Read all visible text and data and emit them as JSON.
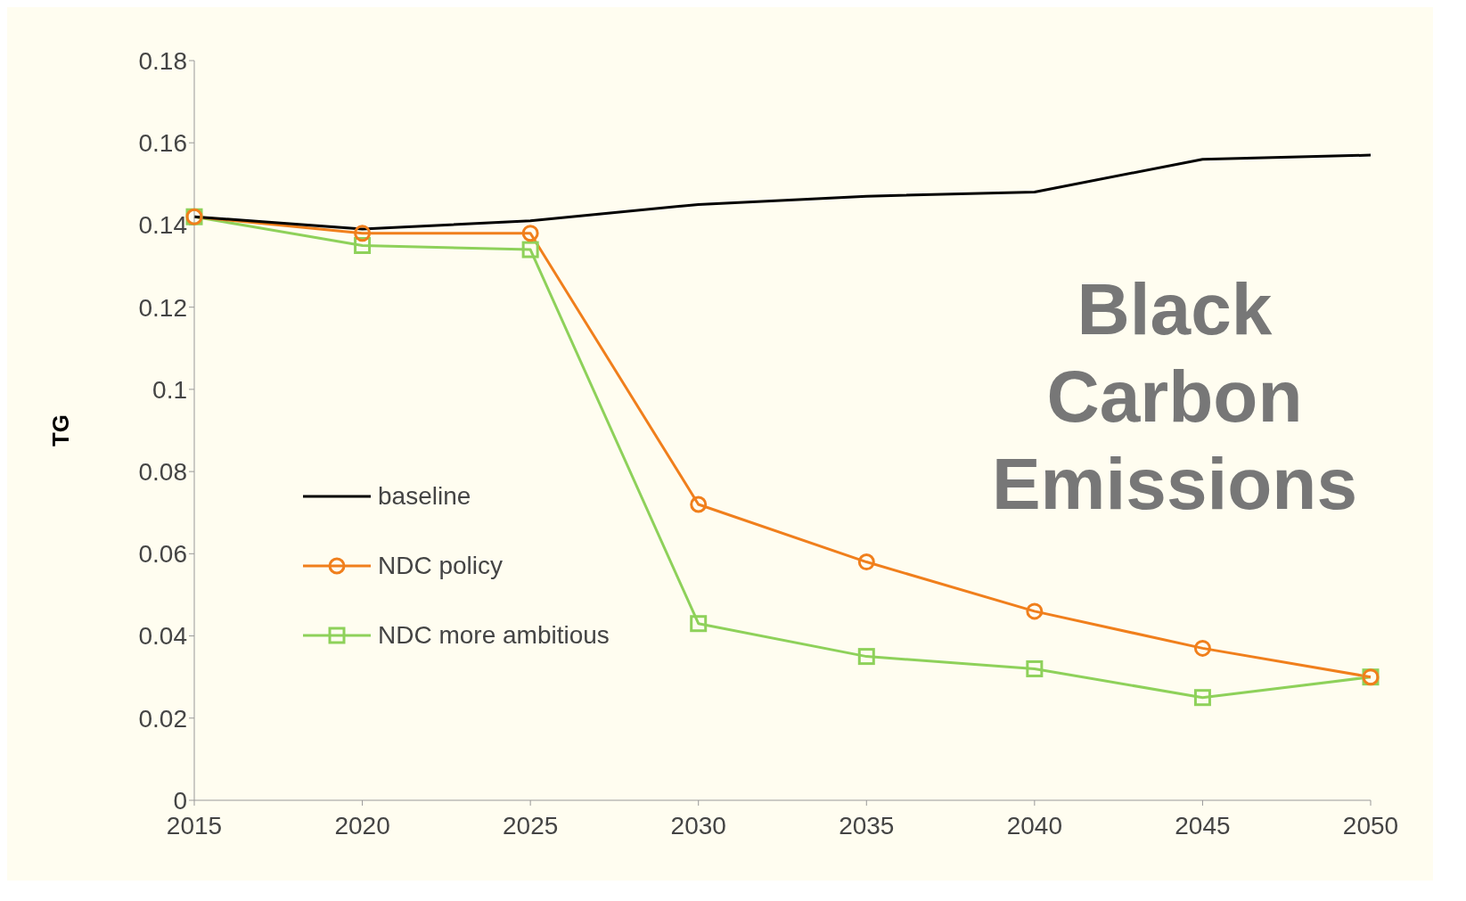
{
  "chart_data": {
    "type": "line",
    "title": "Black Carbon Emissions",
    "ylabel": "TG",
    "categories": [
      "2015",
      "2020",
      "2025",
      "2030",
      "2035",
      "2040",
      "2045",
      "2050"
    ],
    "series": [
      {
        "name": "baseline",
        "color": "#000000",
        "marker": "none",
        "values": [
          0.142,
          0.139,
          0.141,
          0.145,
          0.147,
          0.148,
          0.156,
          0.157
        ]
      },
      {
        "name": "NDC policy",
        "color": "#f07f1c",
        "marker": "circle",
        "values": [
          0.142,
          0.138,
          0.138,
          0.072,
          0.058,
          0.046,
          0.037,
          0.03
        ]
      },
      {
        "name": "NDC more ambitious",
        "color": "#8ed15a",
        "marker": "square",
        "values": [
          0.142,
          0.135,
          0.134,
          0.043,
          0.035,
          0.032,
          0.025,
          0.03
        ]
      }
    ],
    "ylim": [
      0,
      0.18
    ],
    "yticks": [
      0,
      0.02,
      0.04,
      0.06,
      0.08,
      0.1,
      0.12,
      0.14,
      0.16,
      0.18
    ],
    "grid": false,
    "legend": "left"
  }
}
